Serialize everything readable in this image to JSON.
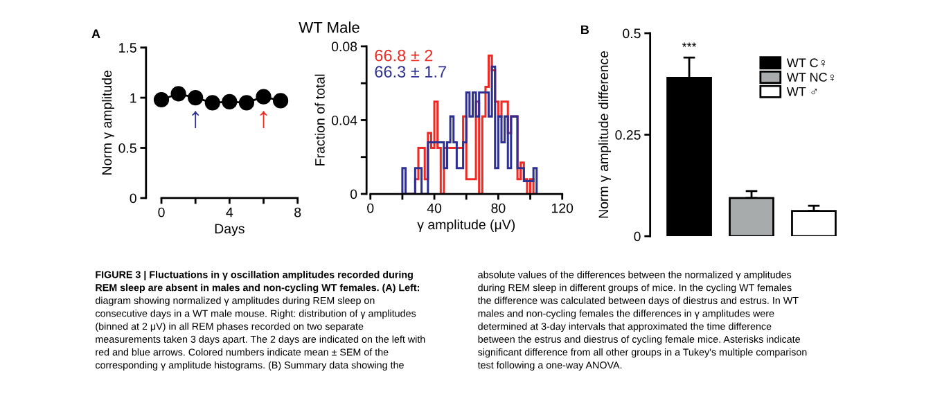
{
  "chart_data": [
    {
      "type": "line",
      "xlabel": "Days",
      "ylabel": "Norm γ amplitude",
      "x": [
        0,
        1,
        2,
        3,
        4,
        5,
        6,
        7
      ],
      "series": [
        {
          "color": "#000000",
          "values": [
            0.98,
            1.04,
            1.0,
            0.95,
            0.96,
            0.95,
            1.01,
            0.97
          ]
        }
      ],
      "marker": "circle",
      "line_style": "solid",
      "grid": false,
      "legend": false,
      "xlim": [
        0,
        8
      ],
      "xticks": [
        0,
        {
          "value": 2,
          "label": null
        },
        4,
        {
          "value": 6,
          "label": null
        },
        8
      ],
      "ylim": [
        0,
        1.5
      ],
      "yticks": [
        0,
        0.5,
        1,
        1.5
      ],
      "annotations": [
        "A",
        "↑",
        "↑"
      ]
    },
    {
      "type": "histogram",
      "title": "WT Male",
      "xlabel": "γ amplitude (μV)",
      "ylabel": "Fraction of total",
      "bins": [
        20,
        22,
        24,
        26,
        28,
        30,
        32,
        34,
        36,
        38,
        40,
        42,
        44,
        46,
        48,
        50,
        52,
        54,
        56,
        58,
        60,
        62,
        64,
        66,
        68,
        70,
        72,
        74,
        76,
        78,
        80,
        82,
        84,
        86,
        88,
        90,
        92,
        94,
        96,
        98,
        100,
        102,
        104
      ],
      "series": [
        {
          "name": "66.8 ± 2",
          "color": "#ee2a24",
          "values": [
            0,
            0,
            0,
            0,
            0.008,
            0.025,
            0.025,
            0.008,
            0.033,
            0.025,
            0.05,
            0.025,
            0,
            0.025,
            0.025,
            0.025,
            0.025,
            0.025,
            0.025,
            0.042,
            0.008,
            0.008,
            0.008,
            0.05,
            0,
            0.042,
            0.058,
            0.075,
            0.067,
            0.05,
            0.042,
            0.05,
            0.05,
            0.033,
            0.042,
            0.042,
            0.008,
            0.017,
            0.008,
            0,
            0.008,
            0
          ]
        },
        {
          "name": "66.3 ± 1.7",
          "color": "#2e3192",
          "values": [
            0.014,
            0,
            0,
            0,
            0.014,
            0.014,
            0,
            0,
            0.028,
            0.028,
            0.028,
            0.028,
            0.028,
            0.014,
            0.028,
            0.042,
            0.028,
            0.014,
            0.014,
            0.028,
            0.055,
            0.042,
            0.055,
            0.042,
            0.055,
            0.055,
            0.055,
            0.042,
            0.069,
            0.014,
            0.042,
            0.028,
            0.042,
            0.014,
            0.042,
            0.042,
            0.014,
            0.014,
            0.007,
            0.007,
            0.007,
            0.014
          ]
        }
      ],
      "grid": false,
      "xlim": [
        0,
        120
      ],
      "xticks": [
        0,
        {
          "value": 20,
          "label": null
        },
        40,
        {
          "value": 60,
          "label": null
        },
        80,
        {
          "value": 100,
          "label": null
        },
        120
      ],
      "ylim": [
        0,
        0.08
      ],
      "yticks": [
        0,
        {
          "value": 0.02,
          "label": null
        },
        0.04,
        {
          "value": 0.06,
          "label": null
        },
        0.08
      ]
    },
    {
      "type": "bar",
      "ylabel": "Norm γ amplitude difference",
      "categories": [
        null,
        null,
        null
      ],
      "stacked": true,
      "series": [
        {
          "name": "WT C♀",
          "color": "#000000",
          "values": [
            0.39,
            null,
            null
          ],
          "errors": [
            [
              0.39,
              0.44
            ],
            null,
            null
          ]
        },
        {
          "name": "WT NC♀",
          "color": "#a7abab",
          "values": [
            null,
            0.094,
            null
          ],
          "errors": [
            null,
            [
              0.094,
              0.111
            ],
            null
          ]
        },
        {
          "name": "WT ♂",
          "color": "#ffffff",
          "values": [
            null,
            null,
            0.062
          ],
          "errors": [
            null,
            null,
            [
              0.062,
              0.075
            ]
          ]
        }
      ],
      "legend": "right",
      "grid": false,
      "ylim": [
        0,
        0.5
      ],
      "yticks": [
        0,
        0.25,
        0.5
      ],
      "annotations": [
        "B",
        "***"
      ]
    },
    {
      "type": "other",
      "annotations": [
        "FIGURE 3 | Fluctuations in γ oscillation amplitudes recorded during",
        "REM sleep are absent in males and non-cycling WT females. (A) Left:",
        "diagram showing normalized γ amplitudes during REM sleep on",
        "consecutive days in a WT male mouse. Right: distribution of γ amplitudes",
        "(binned at 2 μV) in all REM phases recorded on two separate",
        "measurements taken 3 days apart. The 2 days are indicated on the left with",
        "red and blue arrows. Colored numbers indicate mean ± SEM of the",
        "corresponding γ amplitude histograms. (B) Summary data showing the",
        "absolute values of the differences between the normalized γ amplitudes",
        "during REM sleep in different groups of mice. In the cycling WT females",
        "the difference was calculated between days of diestrus and estrus. In WT",
        "males and non-cycling females the differences in γ amplitudes were",
        "determined at 3-day intervals that approximated the time difference",
        "between the estrus and diestrus of cycling female mice. Asterisks indicate",
        "significant difference from all other groups in a Tukey's multiple comparison",
        "test following a one-way ANOVA."
      ]
    }
  ]
}
